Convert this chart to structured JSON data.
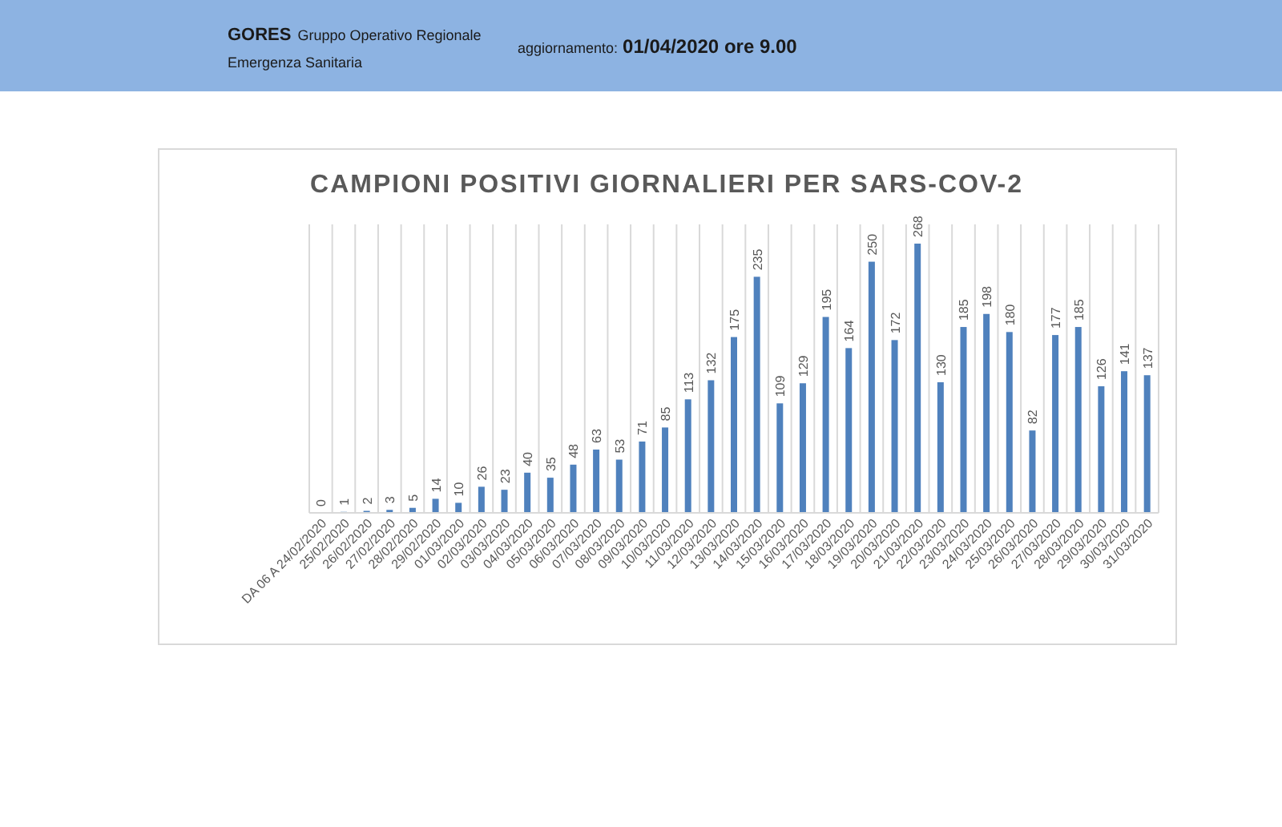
{
  "chart_data": {
    "type": "bar",
    "title": "CAMPIONI POSITIVI GIORNALIERI PER SARS-COV-2",
    "annotations": [
      "GORES",
      "Gruppo Operativo Regionale",
      "Emergenza Sanitaria",
      "aggiornamento:",
      "01/04/2020 ore 9.00"
    ],
    "categories": [
      "DA 06 A 24/02/2020",
      "25/02/2020",
      "26/02/2020",
      "27/02/2020",
      "28/02/2020",
      "29/02/2020",
      "01/03/2020",
      "02/03/2020",
      "03/03/2020",
      "04/03/2020",
      "05/03/2020",
      "06/03/2020",
      "07/03/2020",
      "08/03/2020",
      "09/03/2020",
      "10/03/2020",
      "11/03/2020",
      "12/03/2020",
      "13/03/2020",
      "14/03/2020",
      "15/03/2020",
      "16/03/2020",
      "17/03/2020",
      "18/03/2020",
      "19/03/2020",
      "20/03/2020",
      "21/03/2020",
      "22/03/2020",
      "23/03/2020",
      "24/03/2020",
      "25/03/2020",
      "26/03/2020",
      "27/03/2020",
      "28/03/2020",
      "29/03/2020",
      "30/03/2020",
      "31/03/2020"
    ],
    "values": [
      0,
      1,
      2,
      3,
      5,
      14,
      10,
      26,
      23,
      40,
      35,
      48,
      63,
      53,
      71,
      85,
      113,
      132,
      175,
      235,
      109,
      129,
      195,
      164,
      250,
      172,
      268,
      130,
      185,
      198,
      180,
      82,
      177,
      185,
      126,
      141,
      137
    ],
    "color": "#4f81bd",
    "data_labels": true,
    "grid": "x",
    "tick_labels": "x"
  }
}
